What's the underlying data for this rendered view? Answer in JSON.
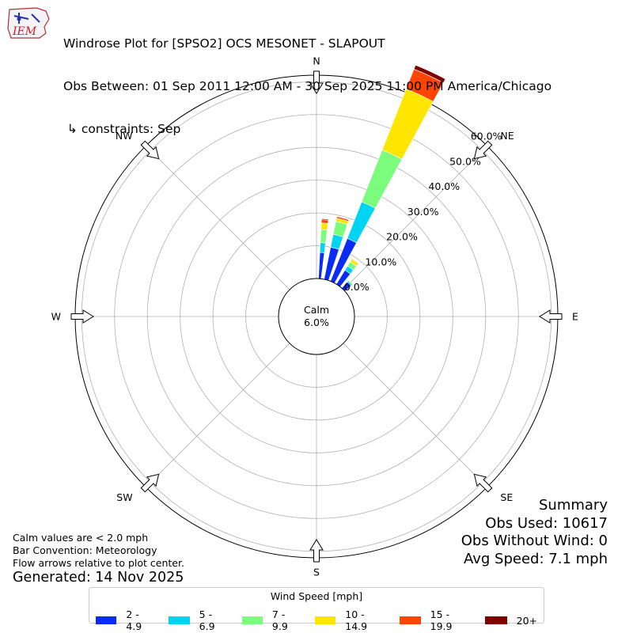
{
  "title": {
    "line1": "Windrose Plot for [SPSO2] OCS MESONET - SLAPOUT",
    "line2": "Obs Between: 01 Sep 2011 12:00 AM - 30 Sep 2025 11:00 PM America/Chicago",
    "line3": " ↳ constraints: Sep"
  },
  "logo_text": "IEM",
  "notes": {
    "calm_note": "Calm values are < 2.0 mph",
    "bar_convention": "Bar Convention: Meteorology",
    "flow_note": "Flow arrows relative to plot center.",
    "generated": "Generated: 14 Nov 2025"
  },
  "summary": {
    "heading": "Summary",
    "obs_used": "Obs Used: 10617",
    "obs_without_wind": "Obs Without Wind: 0",
    "avg_speed": "Avg Speed: 7.1 mph"
  },
  "chart_data": {
    "type": "windrose",
    "calm_label": "Calm",
    "calm_percent": "6.0%",
    "directions": [
      "N",
      "NE",
      "E",
      "SE",
      "S",
      "SW",
      "W",
      "NW"
    ],
    "radial_ticks": [
      "0.0%",
      "10.0%",
      "20.0%",
      "30.0%",
      "40.0%",
      "50.0%",
      "60.0%"
    ],
    "radial_tick_values": [
      0,
      10,
      20,
      30,
      40,
      50,
      60
    ],
    "radial_max": 62,
    "calm_radius_value": 6.0,
    "legend_title": "Wind Speed [mph]",
    "bins": [
      {
        "label": "2 - 4.9",
        "color": "#0a2bf5"
      },
      {
        "label": "5 - 6.9",
        "color": "#00d4f3"
      },
      {
        "label": "7 - 9.9",
        "color": "#7cfc7c"
      },
      {
        "label": "10 - 14.9",
        "color": "#ffe600"
      },
      {
        "label": "15 - 19.9",
        "color": "#ff4500"
      },
      {
        "label": "20+",
        "color": "#800000"
      }
    ],
    "sectors": [
      {
        "direction_deg": 5,
        "width_deg": 4,
        "values": [
          8.0,
          3.0,
          4.0,
          2.0,
          1.0,
          0.3
        ]
      },
      {
        "direction_deg": 15,
        "width_deg": 7,
        "values": [
          10.0,
          4.0,
          4.0,
          1.0,
          0.5,
          0.0
        ]
      },
      {
        "direction_deg": 25,
        "width_deg": 7,
        "values": [
          14.0,
          12.0,
          17.0,
          20.0,
          6.5,
          1.3
        ]
      },
      {
        "direction_deg": 35,
        "width_deg": 7,
        "values": [
          5.0,
          1.5,
          1.5,
          1.0,
          0.2,
          0.0
        ]
      },
      {
        "direction_deg": 45,
        "width_deg": 7,
        "values": [
          2.5,
          0.5,
          0.3,
          0.0,
          0.0,
          0.0
        ]
      }
    ]
  }
}
